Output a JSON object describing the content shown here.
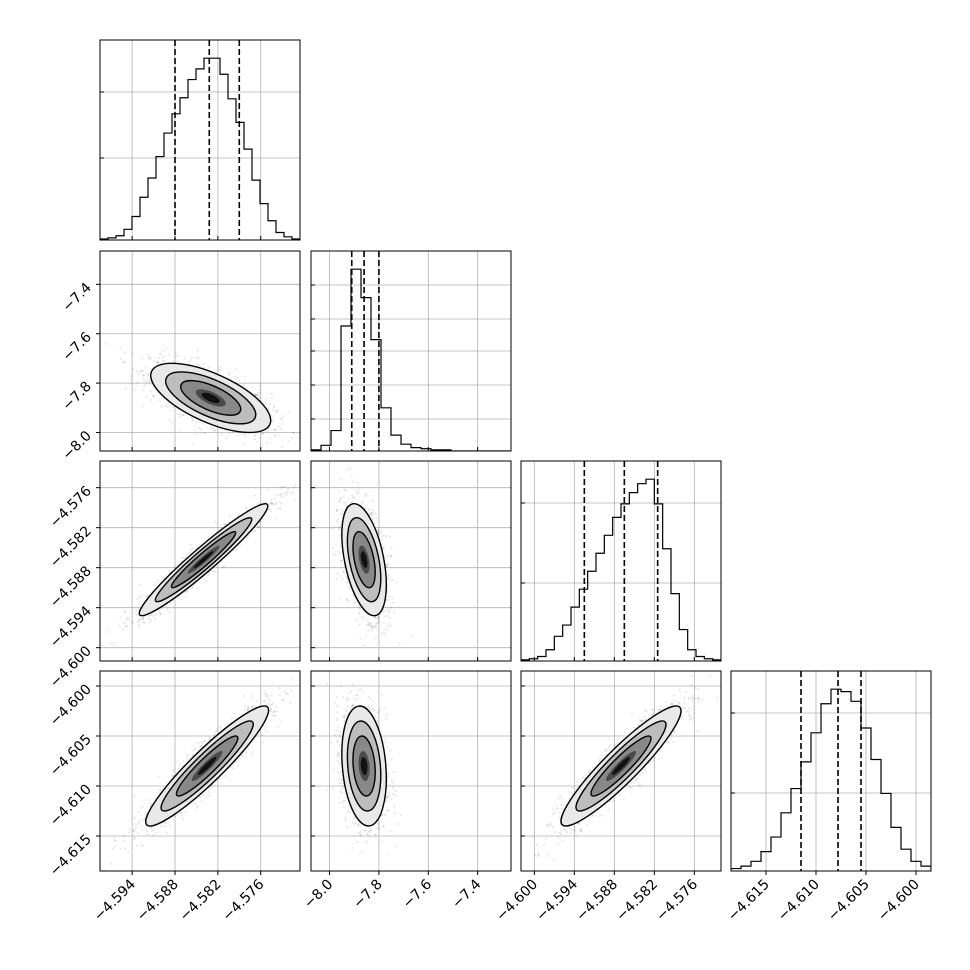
{
  "chart_data": {
    "type": "corner",
    "parameters": [
      {
        "ticks": [
          -4.594,
          -4.588,
          -4.582,
          -4.576
        ],
        "tick_labels": [
          "−4.594",
          "−4.588",
          "−4.582",
          "−4.576"
        ],
        "range": [
          -4.5985,
          -4.5705
        ]
      },
      {
        "ticks": [
          -8.0,
          -7.8,
          -7.6,
          -7.4
        ],
        "tick_labels": [
          "−8.0",
          "−7.8",
          "−7.6",
          "−7.4"
        ],
        "range": [
          -8.075,
          -7.265
        ]
      },
      {
        "ticks": [
          -4.6,
          -4.594,
          -4.588,
          -4.582,
          -4.576
        ],
        "tick_labels": [
          "−4.600",
          "−4.594",
          "−4.588",
          "−4.582",
          "−4.576"
        ],
        "range": [
          -4.602,
          -4.572
        ]
      },
      {
        "ticks": [
          -4.615,
          -4.61,
          -4.605,
          -4.6
        ],
        "tick_labels": [
          "−4.615",
          "−4.610",
          "−4.605",
          "−4.600"
        ],
        "range": [
          -4.6185,
          -4.5985
        ]
      }
    ],
    "histograms": [
      {
        "edges_range": [
          -4.5985,
          -4.5705
        ],
        "counts": [
          1,
          2,
          4,
          10,
          22,
          40,
          58,
          78,
          100,
          118,
          133,
          150,
          160,
          170,
          170,
          155,
          132,
          110,
          85,
          56,
          34,
          18,
          7,
          3,
          1
        ],
        "quantiles": [
          -4.588,
          -4.5832,
          -4.579
        ]
      },
      {
        "edges_range": [
          -8.075,
          -7.265
        ],
        "counts": [
          1,
          5,
          18,
          110,
          160,
          135,
          98,
          38,
          14,
          6,
          3,
          2,
          1,
          1,
          0,
          0,
          0,
          0,
          0,
          0
        ],
        "quantiles": [
          -7.91,
          -7.86,
          -7.8
        ]
      },
      {
        "edges_range": [
          -4.602,
          -4.572
        ],
        "counts": [
          1,
          2,
          4,
          10,
          22,
          32,
          48,
          64,
          80,
          96,
          112,
          128,
          140,
          150,
          158,
          162,
          140,
          100,
          60,
          28,
          10,
          4,
          2,
          1
        ],
        "quantiles": [
          -4.5925,
          -4.5865,
          -4.5815
        ]
      },
      {
        "edges_range": [
          -4.6185,
          -4.5985
        ],
        "counts": [
          2,
          4,
          8,
          16,
          28,
          48,
          68,
          90,
          114,
          138,
          150,
          148,
          140,
          118,
          92,
          64,
          36,
          18,
          8,
          4
        ],
        "quantiles": [
          -4.6115,
          -4.6078,
          -4.6055
        ]
      }
    ],
    "pairs": [
      {
        "row": 1,
        "col": 0,
        "means": [
          -4.583,
          -7.86
        ],
        "sds": [
          0.0042,
          0.07
        ],
        "corr": -0.65,
        "n": 1500
      },
      {
        "row": 2,
        "col": 0,
        "means": [
          -4.584,
          -4.5868
        ],
        "sds": [
          0.0045,
          0.0042
        ],
        "corr": 0.96,
        "n": 1500
      },
      {
        "row": 2,
        "col": 1,
        "means": [
          -7.86,
          -4.5868
        ],
        "sds": [
          0.045,
          0.0042
        ],
        "corr": -0.45,
        "n": 1500
      },
      {
        "row": 3,
        "col": 0,
        "means": [
          -4.5835,
          -4.608
        ],
        "sds": [
          0.0043,
          0.003
        ],
        "corr": 0.93,
        "n": 1500
      },
      {
        "row": 3,
        "col": 1,
        "means": [
          -7.86,
          -4.608
        ],
        "sds": [
          0.045,
          0.003
        ],
        "corr": -0.2,
        "n": 1500
      },
      {
        "row": 3,
        "col": 2,
        "means": [
          -4.587,
          -4.608
        ],
        "sds": [
          0.0045,
          0.003
        ],
        "corr": 0.92,
        "n": 1500
      }
    ],
    "grid": true,
    "contour_levels_sigma": [
      0.5,
      1.0,
      1.5,
      2.0
    ]
  }
}
